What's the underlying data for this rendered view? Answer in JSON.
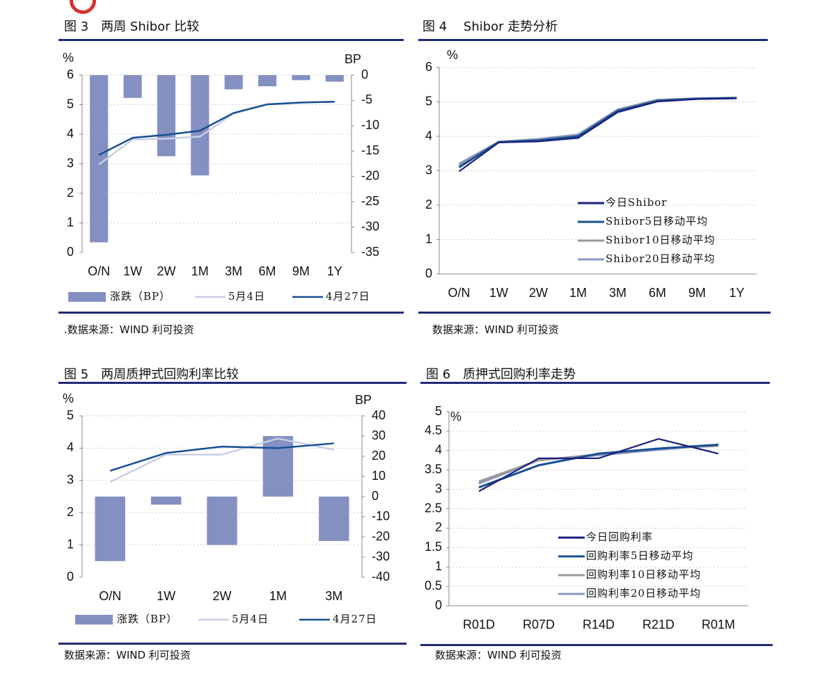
{
  "colors": {
    "bar": "#8490c2",
    "dark": "#1a1f80",
    "mid": "#164f94",
    "gray": "#999999",
    "light": "#8a97c6",
    "pale": "#c8cfe4",
    "rule": "#1f2a73"
  },
  "fig3": {
    "title": "图 3　两周 Shibor 比较",
    "source": ".数据来源：WIND  利可投资",
    "chart_data": {
      "type": "bar+line",
      "left_unit": "%",
      "right_unit": "BP",
      "categories": [
        "O/N",
        "1W",
        "2W",
        "1M",
        "3M",
        "6M",
        "9M",
        "1Y"
      ],
      "left_ylim": [
        0,
        6
      ],
      "left_ticks": [
        0,
        1,
        2,
        3,
        4,
        5,
        6
      ],
      "right_ylim": [
        -35,
        0
      ],
      "right_ticks": [
        0,
        -5,
        -10,
        -15,
        -20,
        -25,
        -30,
        -35
      ],
      "bars": {
        "name": "涨跌（BP）",
        "axis": "right",
        "values": [
          -33,
          -4.5,
          -16,
          -19.8,
          -2.8,
          -2.2,
          -1,
          -1.3
        ]
      },
      "lines": [
        {
          "name": "5月4日",
          "axis": "left",
          "color": "pale",
          "values": [
            2.98,
            3.82,
            3.85,
            3.92,
            4.7,
            5.02,
            5.08,
            5.1
          ]
        },
        {
          "name": "4月27日",
          "axis": "left",
          "color": "mid",
          "values": [
            3.3,
            3.88,
            3.98,
            4.12,
            4.72,
            5.01,
            5.07,
            5.1
          ]
        }
      ]
    }
  },
  "fig4": {
    "title": "图 4　 Shibor 走势分析",
    "source": "数据来源：WIND   利可投资",
    "chart_data": {
      "type": "line",
      "y_unit": "%",
      "categories": [
        "O/N",
        "1W",
        "2W",
        "1M",
        "3M",
        "6M",
        "9M",
        "1Y"
      ],
      "ylim": [
        0,
        6
      ],
      "yticks": [
        0,
        1,
        2,
        3,
        4,
        5,
        6
      ],
      "series": [
        {
          "name": "Shibor20日移动平均",
          "color": "light",
          "values": [
            3.2,
            3.84,
            3.92,
            4.05,
            4.78,
            5.06,
            5.1,
            5.12
          ]
        },
        {
          "name": "Shibor10日移动平均",
          "color": "gray",
          "values": [
            3.15,
            3.84,
            3.9,
            4.02,
            4.76,
            5.05,
            5.1,
            5.12
          ]
        },
        {
          "name": "Shibor5日移动平均",
          "color": "mid",
          "values": [
            3.1,
            3.83,
            3.88,
            4.0,
            4.74,
            5.03,
            5.09,
            5.11
          ]
        },
        {
          "name": "今日Shibor",
          "color": "dark",
          "values": [
            2.98,
            3.82,
            3.85,
            3.95,
            4.7,
            5.01,
            5.08,
            5.1
          ]
        }
      ],
      "legend_order": [
        "今日Shibor",
        "Shibor5日移动平均",
        "Shibor10日移动平均",
        "Shibor20日移动平均"
      ]
    }
  },
  "fig5": {
    "title": "图 5　两周质押式回购利率比较",
    "source": "数据来源：WIND    利可投资",
    "chart_data": {
      "type": "bar+line",
      "left_unit": "%",
      "right_unit": "BP",
      "categories": [
        "O/N",
        "1W",
        "2W",
        "1M",
        "3M"
      ],
      "left_ylim": [
        0,
        5
      ],
      "left_ticks": [
        0,
        1,
        2,
        3,
        4,
        5
      ],
      "right_ylim": [
        -40,
        40
      ],
      "right_ticks": [
        40,
        30,
        20,
        10,
        0,
        -10,
        -20,
        -30,
        -40
      ],
      "bars": {
        "name": "涨跌（BP）",
        "axis": "right",
        "values": [
          -32,
          -4,
          -24,
          30,
          -22
        ]
      },
      "lines": [
        {
          "name": "5月4日",
          "axis": "left",
          "color": "pale",
          "values": [
            2.95,
            3.8,
            3.8,
            4.3,
            3.95
          ]
        },
        {
          "name": "4月27日",
          "axis": "left",
          "color": "mid",
          "values": [
            3.3,
            3.85,
            4.05,
            4.0,
            4.15
          ]
        }
      ]
    }
  },
  "fig6": {
    "title": "图 6　质押式回购利率走势",
    "source": "数据来源：WIND    利可投资",
    "chart_data": {
      "type": "line",
      "y_unit": "%",
      "categories": [
        "R01D",
        "R07D",
        "R14D",
        "R21D",
        "R01M"
      ],
      "ylim": [
        0,
        5
      ],
      "yticks": [
        0,
        0.5,
        1,
        1.5,
        2,
        2.5,
        3,
        3.5,
        4,
        4.5,
        5
      ],
      "series": [
        {
          "name": "回购利率20日移动平均",
          "color": "light",
          "values": [
            3.15,
            3.75,
            3.88,
            4.02,
            4.15
          ]
        },
        {
          "name": "回购利率10日移动平均",
          "color": "gray",
          "values": [
            3.2,
            3.75,
            3.9,
            4.05,
            4.12
          ]
        },
        {
          "name": "回购利率5日移动平均",
          "color": "mid",
          "values": [
            3.05,
            3.62,
            3.92,
            4.05,
            4.15
          ]
        },
        {
          "name": "今日回购利率",
          "color": "dark",
          "values": [
            2.95,
            3.8,
            3.8,
            4.3,
            3.92
          ]
        }
      ],
      "legend_order": [
        "今日回购利率",
        "回购利率5日移动平均",
        "回购利率10日移动平均",
        "回购利率20日移动平均"
      ]
    }
  }
}
